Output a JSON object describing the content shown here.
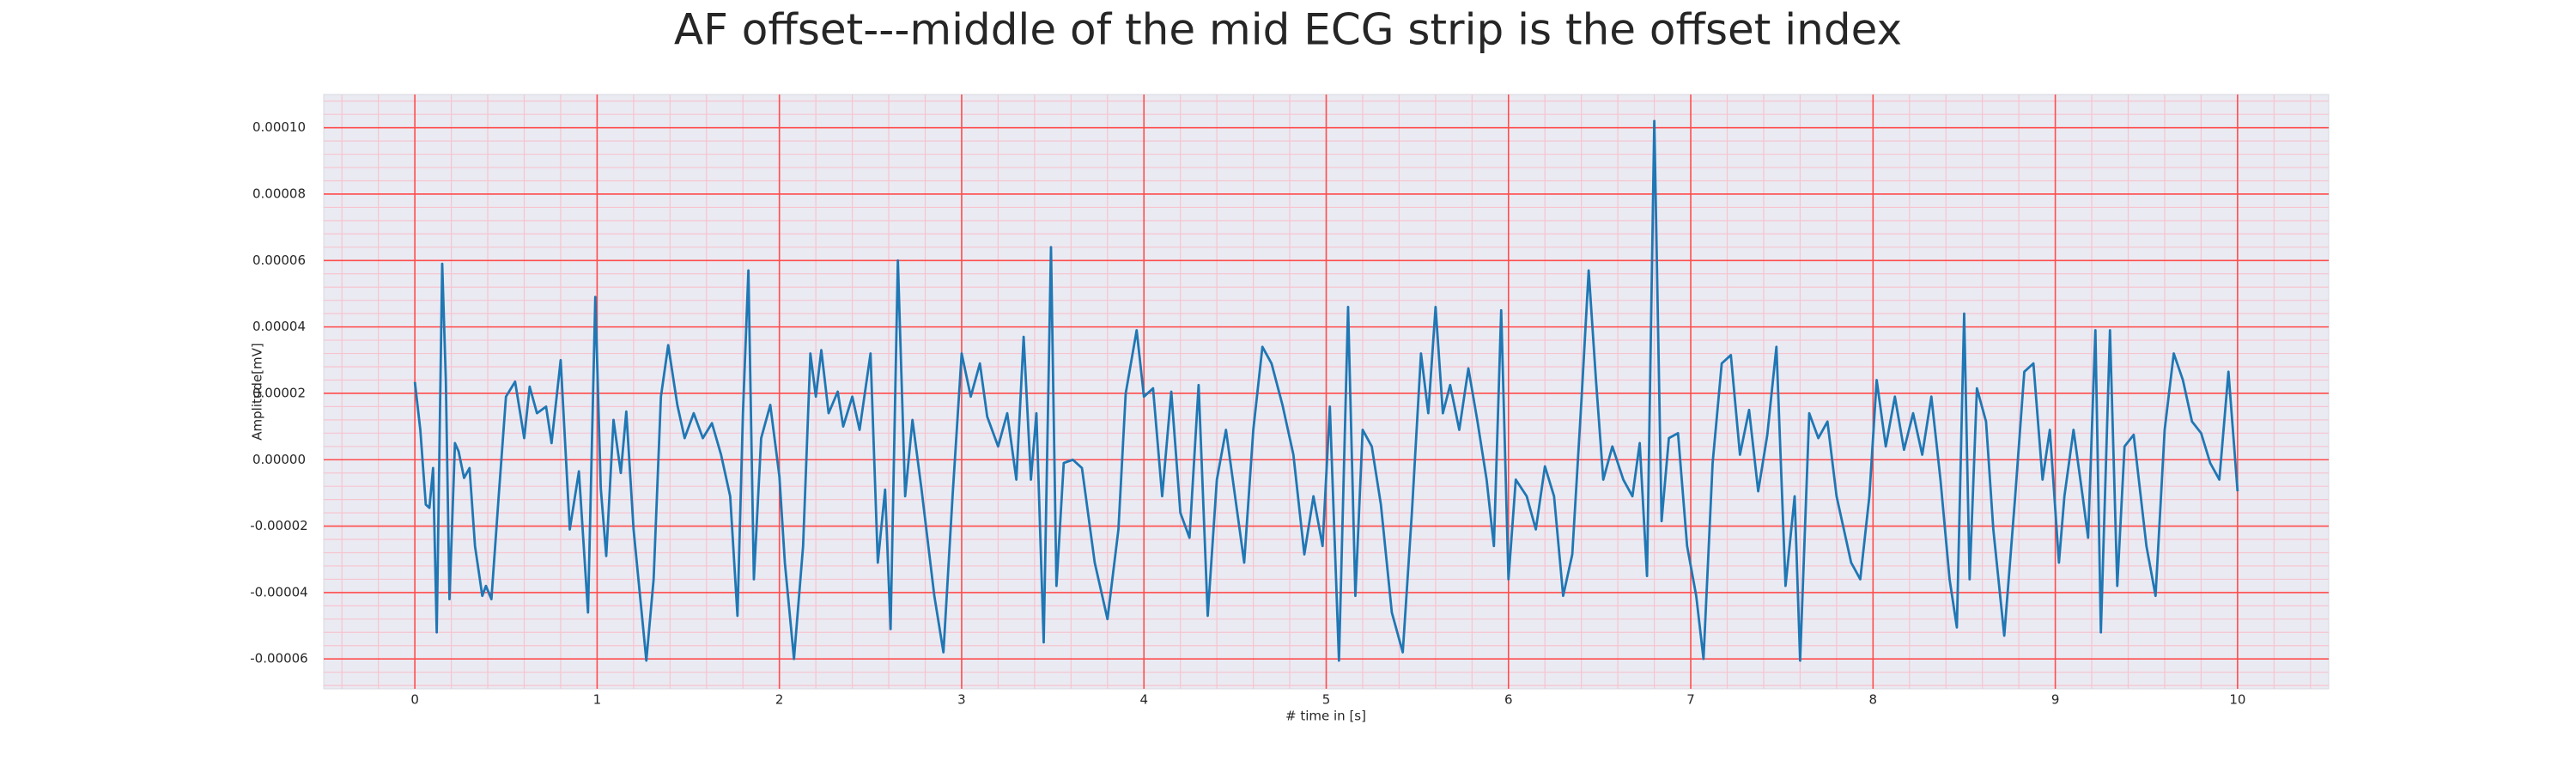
{
  "chart_data": {
    "type": "line",
    "title": "AF offset---middle of the mid ECG strip is the offset index",
    "x_label": "# time in [s]",
    "y_label": "Amplitude[mV]",
    "color": "#1f77b4",
    "grid": true,
    "grid_color": "#ff4d4d",
    "minor_grid": true,
    "minor_grid_color": "#f6c4cf",
    "background": "#eaeaf2",
    "xlim": [
      -0.5,
      10.5
    ],
    "ylim": [
      -6.9e-05,
      0.00011
    ],
    "xticks": [
      0,
      1,
      2,
      3,
      4,
      5,
      6,
      7,
      8,
      9,
      10
    ],
    "yticks": [
      {
        "value": -6e-05,
        "label": "-0.00006"
      },
      {
        "value": -4e-05,
        "label": "-0.00004"
      },
      {
        "value": -2e-05,
        "label": "-0.00002"
      },
      {
        "value": 0,
        "label": "0.00000"
      },
      {
        "value": 2e-05,
        "label": "0.00002"
      },
      {
        "value": 4e-05,
        "label": "0.00004"
      },
      {
        "value": 6e-05,
        "label": "0.00006"
      },
      {
        "value": 8e-05,
        "label": "0.00008"
      },
      {
        "value": 0.0001,
        "label": "0.00010"
      }
    ],
    "x": [
      0,
      0.03,
      0.06,
      0.08,
      0.1,
      0.12,
      0.15,
      0.17,
      0.19,
      0.22,
      0.24,
      0.27,
      0.3,
      0.33,
      0.37,
      0.39,
      0.42,
      0.46,
      0.5,
      0.55,
      0.6,
      0.63,
      0.67,
      0.72,
      0.75,
      0.8,
      0.85,
      0.9,
      0.95,
      0.99,
      1.02,
      1.05,
      1.09,
      1.13,
      1.16,
      1.2,
      1.27,
      1.31,
      1.35,
      1.39,
      1.44,
      1.48,
      1.53,
      1.58,
      1.63,
      1.68,
      1.73,
      1.77,
      1.8,
      1.83,
      1.86,
      1.9,
      1.95,
      2.0,
      2.03,
      2.08,
      2.13,
      2.17,
      2.2,
      2.23,
      2.27,
      2.32,
      2.35,
      2.4,
      2.44,
      2.5,
      2.54,
      2.58,
      2.61,
      2.65,
      2.69,
      2.73,
      2.78,
      2.85,
      2.9,
      2.95,
      3.0,
      3.05,
      3.1,
      3.14,
      3.2,
      3.25,
      3.3,
      3.34,
      3.38,
      3.41,
      3.45,
      3.49,
      3.52,
      3.56,
      3.61,
      3.66,
      3.73,
      3.8,
      3.86,
      3.9,
      3.96,
      4.0,
      4.05,
      4.1,
      4.15,
      4.2,
      4.25,
      4.3,
      4.35,
      4.4,
      4.45,
      4.5,
      4.55,
      4.6,
      4.65,
      4.7,
      4.76,
      4.82,
      4.88,
      4.93,
      4.98,
      5.02,
      5.07,
      5.12,
      5.16,
      5.2,
      5.25,
      5.3,
      5.36,
      5.42,
      5.47,
      5.52,
      5.56,
      5.6,
      5.64,
      5.68,
      5.73,
      5.78,
      5.83,
      5.88,
      5.92,
      5.96,
      6.0,
      6.04,
      6.1,
      6.15,
      6.2,
      6.25,
      6.3,
      6.35,
      6.4,
      6.44,
      6.48,
      6.52,
      6.57,
      6.63,
      6.68,
      6.72,
      6.76,
      6.8,
      6.84,
      6.88,
      6.93,
      6.98,
      7.03,
      7.07,
      7.12,
      7.17,
      7.22,
      7.27,
      7.32,
      7.37,
      7.42,
      7.47,
      7.52,
      7.57,
      7.6,
      7.65,
      7.7,
      7.75,
      7.8,
      7.88,
      7.93,
      7.98,
      8.02,
      8.07,
      8.12,
      8.17,
      8.22,
      8.27,
      8.32,
      8.37,
      8.42,
      8.46,
      8.5,
      8.53,
      8.57,
      8.62,
      8.66,
      8.72,
      8.78,
      8.83,
      8.88,
      8.93,
      8.97,
      9.02,
      9.05,
      9.1,
      9.15,
      9.18,
      9.22,
      9.25,
      9.3,
      9.34,
      9.38,
      9.43,
      9.5,
      9.55,
      9.6,
      9.65,
      9.7,
      9.75,
      9.8,
      9.85,
      9.9,
      9.95,
      10.0
    ],
    "values": [
      2.34e-05,
      9e-06,
      -1.35e-05,
      -1.45e-05,
      -2.5e-06,
      -5.2e-05,
      5.9e-05,
      2.4e-05,
      -4.2e-05,
      5e-06,
      2.5e-06,
      -5.5e-06,
      -2.5e-06,
      -2.6e-05,
      -4.1e-05,
      -3.8e-05,
      -4.2e-05,
      -1.1e-05,
      1.9e-05,
      2.35e-05,
      6.5e-06,
      2.2e-05,
      1.4e-05,
      1.6e-05,
      5e-06,
      3e-05,
      -2.1e-05,
      -3.5e-06,
      -4.6e-05,
      4.9e-05,
      -8.5e-06,
      -2.9e-05,
      1.2e-05,
      -4e-06,
      1.45e-05,
      -2.1e-05,
      -6.05e-05,
      -3.6e-05,
      1.9e-05,
      3.45e-05,
      1.65e-05,
      6.5e-06,
      1.4e-05,
      6.5e-06,
      1.1e-05,
      1.5e-06,
      -1.1e-05,
      -4.7e-05,
      1.4e-05,
      5.7e-05,
      -3.6e-05,
      6.5e-06,
      1.65e-05,
      -5e-06,
      -3.1e-05,
      -6e-05,
      -2.6e-05,
      3.2e-05,
      1.9e-05,
      3.3e-05,
      1.4e-05,
      2.05e-05,
      1e-05,
      1.9e-05,
      9e-06,
      3.2e-05,
      -3.1e-05,
      -9e-06,
      -5.1e-05,
      6e-05,
      -1.1e-05,
      1.2e-05,
      -9e-06,
      -4.1e-05,
      -5.8e-05,
      -1.1e-05,
      3.2e-05,
      1.9e-05,
      2.9e-05,
      1.3e-05,
      4e-06,
      1.4e-05,
      -6e-06,
      3.7e-05,
      -6e-06,
      1.4e-05,
      -5.5e-05,
      6.4e-05,
      -3.8e-05,
      -1e-06,
      0,
      -2.5e-06,
      -3.1e-05,
      -4.8e-05,
      -2.1e-05,
      2e-05,
      3.9e-05,
      1.9e-05,
      2.15e-05,
      -1.1e-05,
      2.05e-05,
      -1.6e-05,
      -2.35e-05,
      2.25e-05,
      -4.7e-05,
      -6e-06,
      9e-06,
      -1.1e-05,
      -3.1e-05,
      9e-06,
      3.4e-05,
      2.9e-05,
      1.65e-05,
      1.5e-06,
      -2.85e-05,
      -1.1e-05,
      -2.6e-05,
      1.6e-05,
      -6.05e-05,
      4.6e-05,
      -4.1e-05,
      9e-06,
      4e-06,
      -1.35e-05,
      -4.6e-05,
      -5.8e-05,
      -1.6e-05,
      3.2e-05,
      1.4e-05,
      4.6e-05,
      1.4e-05,
      2.25e-05,
      9e-06,
      2.75e-05,
      1.15e-05,
      -6e-06,
      -2.6e-05,
      4.5e-05,
      -3.6e-05,
      -6e-06,
      -1.1e-05,
      -2.1e-05,
      -2e-06,
      -1.1e-05,
      -4.1e-05,
      -2.85e-05,
      1.75e-05,
      5.7e-05,
      2.4e-05,
      -6e-06,
      4e-06,
      -6e-06,
      -1.1e-05,
      5e-06,
      -3.5e-05,
      0.000102,
      -1.85e-05,
      6.5e-06,
      8e-06,
      -2.6e-05,
      -4.1e-05,
      -6e-05,
      -1e-06,
      2.9e-05,
      3.15e-05,
      1.5e-06,
      1.5e-05,
      -9.5e-06,
      7.5e-06,
      3.4e-05,
      -3.8e-05,
      -1.1e-05,
      -6.05e-05,
      1.4e-05,
      6.5e-06,
      1.15e-05,
      -1.1e-05,
      -3.1e-05,
      -3.6e-05,
      -1.1e-05,
      2.4e-05,
      4e-06,
      1.9e-05,
      3e-06,
      1.4e-05,
      1.5e-06,
      1.9e-05,
      -6e-06,
      -3.6e-05,
      -5.05e-05,
      4.4e-05,
      -3.6e-05,
      2.15e-05,
      1.15e-05,
      -2.1e-05,
      -5.3e-05,
      -1.1e-05,
      2.65e-05,
      2.9e-05,
      -6e-06,
      9e-06,
      -3.1e-05,
      -1.1e-05,
      9e-06,
      -1.1e-05,
      -2.35e-05,
      3.9e-05,
      -5.2e-05,
      3.9e-05,
      -3.8e-05,
      4e-06,
      7.5e-06,
      -2.6e-05,
      -4.1e-05,
      9e-06,
      3.2e-05,
      2.4e-05,
      1.15e-05,
      8e-06,
      -1e-06,
      -6e-06,
      2.65e-05,
      -9.5e-06
    ]
  }
}
